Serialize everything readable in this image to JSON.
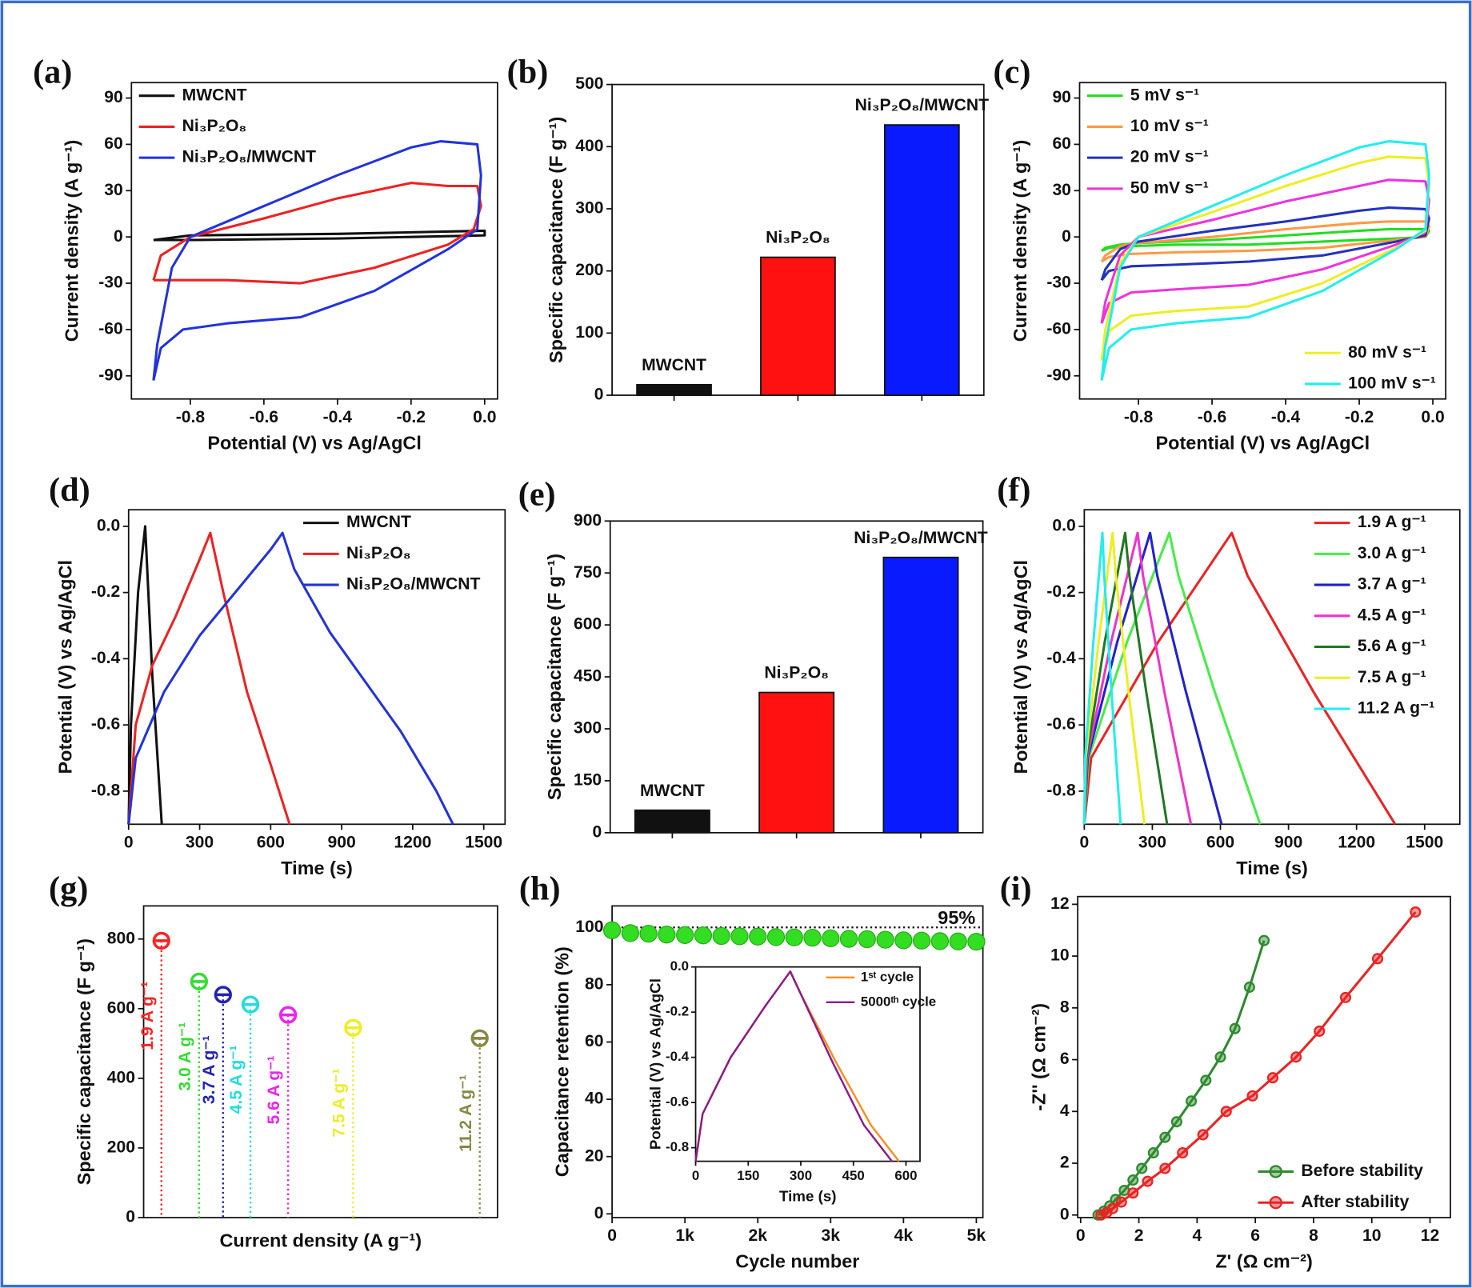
{
  "chart_data": [
    {
      "panel": "(a)",
      "type": "line",
      "xlabel": "Potential (V) vs Ag/AgCl",
      "ylabel": "Current density (A g⁻¹)",
      "xlim": [
        -0.96,
        0.035
      ],
      "ylim": [
        -105,
        100
      ],
      "xticks": [
        -0.8,
        -0.6,
        -0.4,
        -0.2,
        {
          "value": 0,
          "label": "0.0"
        }
      ],
      "yticks": [
        -90,
        -60,
        -30,
        0,
        30,
        60,
        90
      ],
      "legend": "upper left",
      "series": [
        {
          "name": "MWCNT",
          "color": "#111111",
          "x": [
            -0.9,
            -0.8,
            -0.4,
            0,
            0,
            -0.4,
            -0.8,
            -0.9
          ],
          "values": [
            -2,
            1,
            2,
            4,
            1,
            -1,
            -2,
            -2
          ]
        },
        {
          "name": "Ni₃P₂O₈",
          "color": "#ee2222",
          "x": [
            -0.9,
            -0.88,
            -0.8,
            -0.6,
            -0.4,
            -0.2,
            -0.1,
            -0.02,
            -0.01,
            -0.03,
            -0.1,
            -0.3,
            -0.5,
            -0.7,
            -0.85,
            -0.9
          ],
          "values": [
            -28,
            -12,
            0,
            12,
            25,
            35,
            33,
            33,
            20,
            5,
            -5,
            -20,
            -30,
            -28,
            -28,
            -28
          ]
        },
        {
          "name": "Ni₃P₂O₈/MWCNT",
          "color": "#2233dd",
          "x": [
            -0.9,
            -0.89,
            -0.85,
            -0.8,
            -0.6,
            -0.4,
            -0.2,
            -0.12,
            -0.02,
            -0.01,
            -0.02,
            -0.1,
            -0.3,
            -0.5,
            -0.7,
            -0.82,
            -0.88,
            -0.9
          ],
          "values": [
            -93,
            -70,
            -20,
            0,
            20,
            40,
            58,
            62,
            60,
            40,
            5,
            -8,
            -35,
            -52,
            -56,
            -60,
            -72,
            -93
          ]
        }
      ]
    },
    {
      "panel": "(b)",
      "type": "bar",
      "ylabel": "Specific capacitance (F g⁻¹)",
      "ylim": [
        0,
        500
      ],
      "yticks": [
        0,
        100,
        200,
        300,
        400,
        500
      ],
      "categories": [
        "MWCNT",
        "Ni₃P₂O₈",
        "Ni₃P₂O₈/MWCNT"
      ],
      "values": [
        17,
        222,
        435
      ],
      "colors": [
        "#111111",
        "#ff1111",
        "#0a1aff"
      ]
    },
    {
      "panel": "(c)",
      "type": "line",
      "xlabel": "Potential (V) vs Ag/AgCl",
      "ylabel": "Current density (A g⁻¹)",
      "xlim": [
        -0.96,
        0.035
      ],
      "ylim": [
        -105,
        100
      ],
      "xticks": [
        -0.8,
        -0.6,
        -0.4,
        -0.2,
        {
          "value": 0,
          "label": "0.0"
        }
      ],
      "yticks": [
        -90,
        -60,
        -30,
        0,
        30,
        60,
        90
      ],
      "x": [
        -0.9,
        -0.89,
        -0.85,
        -0.8,
        -0.6,
        -0.4,
        -0.2,
        -0.12,
        -0.02,
        -0.01,
        -0.02,
        -0.1,
        -0.3,
        -0.5,
        -0.7,
        -0.82,
        -0.88,
        -0.9
      ],
      "series": [
        {
          "name": "5 mV s⁻¹",
          "color": "#22dd22",
          "legend": "upper left",
          "values": [
            -9,
            -7,
            -5,
            -4,
            -2,
            1,
            4,
            5,
            5,
            4,
            0,
            -1,
            -3,
            -5,
            -5,
            -6,
            -7,
            -9
          ]
        },
        {
          "name": "10 mV s⁻¹",
          "color": "#ff9944",
          "legend": "upper left",
          "values": [
            -16,
            -12,
            -6,
            -4,
            0,
            5,
            9,
            10,
            10,
            7,
            0,
            -2,
            -7,
            -9,
            -10,
            -11,
            -13,
            -16
          ]
        },
        {
          "name": "20 mV s⁻¹",
          "color": "#2233bb",
          "legend": "upper left",
          "values": [
            -28,
            -21,
            -8,
            -3,
            4,
            10,
            17,
            19,
            18,
            12,
            1,
            -3,
            -12,
            -16,
            -18,
            -19,
            -22,
            -28
          ]
        },
        {
          "name": "50 mV s⁻¹",
          "color": "#ee33dd",
          "legend": "upper left",
          "values": [
            -56,
            -42,
            -12,
            0,
            11,
            23,
            33,
            37,
            36,
            24,
            3,
            -5,
            -21,
            -31,
            -34,
            -36,
            -43,
            -56
          ]
        },
        {
          "name": "80 mV s⁻¹",
          "color": "#eeee22",
          "legend": "lower right",
          "values": [
            -80,
            -60,
            -17,
            0,
            16,
            33,
            48,
            52,
            51,
            34,
            4,
            -7,
            -30,
            -45,
            -48,
            -51,
            -61,
            -80
          ]
        },
        {
          "name": "100 mV s⁻¹",
          "color": "#22eeee",
          "legend": "lower right",
          "values": [
            -93,
            -70,
            -20,
            0,
            20,
            40,
            58,
            62,
            60,
            40,
            5,
            -8,
            -35,
            -52,
            -56,
            -60,
            -72,
            -93
          ]
        }
      ]
    },
    {
      "panel": "(d)",
      "type": "line",
      "xlabel": "Time (s)",
      "ylabel": "Potential (V) vs Ag/AgCl",
      "xlim": [
        0,
        1590
      ],
      "ylim": [
        -0.9,
        0.05
      ],
      "xticks": [
        0,
        300,
        600,
        900,
        1200,
        1500
      ],
      "yticks": [
        -0.8,
        -0.6,
        -0.4,
        -0.2,
        {
          "value": 0,
          "label": "0.0"
        }
      ],
      "legend": "upper right",
      "series": [
        {
          "name": "MWCNT",
          "color": "#111111",
          "x": [
            0,
            10,
            40,
            70,
            100,
            140
          ],
          "values": [
            -0.9,
            -0.6,
            -0.2,
            0,
            -0.45,
            -0.9
          ]
        },
        {
          "name": "Ni₃P₂O₈",
          "color": "#ee2222",
          "x": [
            0,
            30,
            100,
            200,
            300,
            345,
            400,
            500,
            600,
            680
          ],
          "values": [
            -0.9,
            -0.6,
            -0.42,
            -0.27,
            -0.1,
            -0.02,
            -0.2,
            -0.5,
            -0.72,
            -0.9
          ]
        },
        {
          "name": "Ni₃P₂O₈/MWCNT",
          "color": "#2233dd",
          "x": [
            0,
            30,
            150,
            300,
            450,
            600,
            650,
            700,
            850,
            1000,
            1150,
            1300,
            1370
          ],
          "values": [
            -0.9,
            -0.7,
            -0.5,
            -0.33,
            -0.2,
            -0.07,
            -0.02,
            -0.13,
            -0.32,
            -0.47,
            -0.62,
            -0.8,
            -0.9
          ]
        }
      ]
    },
    {
      "panel": "(e)",
      "type": "bar",
      "ylabel": "Specific capacitance (F g⁻¹)",
      "ylim": [
        0,
        900
      ],
      "yticks": [
        0,
        150,
        300,
        450,
        600,
        750,
        900
      ],
      "categories": [
        "MWCNT",
        "Ni₃P₂O₈",
        "Ni₃P₂O₈/MWCNT"
      ],
      "values": [
        65,
        405,
        795
      ],
      "colors": [
        "#111111",
        "#ff1111",
        "#0a1aff"
      ]
    },
    {
      "panel": "(f)",
      "type": "line",
      "xlabel": "Time (s)",
      "ylabel": "Potential (V) vs Ag/AgCl",
      "xlim": [
        0,
        1655
      ],
      "ylim": [
        -0.9,
        0.05
      ],
      "xticks": [
        0,
        300,
        600,
        900,
        1200,
        1500
      ],
      "yticks": [
        -0.8,
        -0.6,
        -0.4,
        -0.2,
        {
          "value": 0,
          "label": "0.0"
        }
      ],
      "legend": "upper right",
      "series": [
        {
          "name": "1.9 A g⁻¹",
          "color": "#ee2222",
          "x": [
            0,
            30,
            325,
            650,
            720,
            1010,
            1370
          ],
          "values": [
            -0.9,
            -0.7,
            -0.35,
            -0.02,
            -0.15,
            -0.5,
            -0.9
          ]
        },
        {
          "name": "3.0 A g⁻¹",
          "color": "#44ee44",
          "x": [
            0,
            19,
            188,
            375,
            415,
            575,
            775
          ],
          "values": [
            -0.9,
            -0.7,
            -0.35,
            -0.02,
            -0.15,
            -0.5,
            -0.9
          ]
        },
        {
          "name": "3.7 A g⁻¹",
          "color": "#2222cc",
          "x": [
            0,
            15,
            145,
            290,
            322,
            448,
            605
          ],
          "values": [
            -0.9,
            -0.7,
            -0.35,
            -0.02,
            -0.15,
            -0.5,
            -0.9
          ]
        },
        {
          "name": "4.5 A g⁻¹",
          "color": "#ee33cc",
          "x": [
            0,
            12,
            118,
            235,
            259,
            353,
            470
          ],
          "values": [
            -0.9,
            -0.7,
            -0.35,
            -0.02,
            -0.15,
            -0.5,
            -0.9
          ]
        },
        {
          "name": "5.6 A g⁻¹",
          "color": "#227722",
          "x": [
            0,
            9,
            90,
            180,
            199,
            273,
            365
          ],
          "values": [
            -0.9,
            -0.7,
            -0.35,
            -0.02,
            -0.15,
            -0.5,
            -0.9
          ]
        },
        {
          "name": "7.5 A g⁻¹",
          "color": "#eeee22",
          "x": [
            0,
            6,
            63,
            125,
            139,
            195,
            265
          ],
          "values": [
            -0.9,
            -0.7,
            -0.35,
            -0.02,
            -0.15,
            -0.5,
            -0.9
          ]
        },
        {
          "name": "11.2 A g⁻¹",
          "color": "#22eeee",
          "x": [
            0,
            4,
            40,
            80,
            88,
            120,
            160
          ],
          "values": [
            -0.9,
            -0.7,
            -0.35,
            -0.02,
            -0.15,
            -0.5,
            -0.9
          ]
        }
      ]
    },
    {
      "panel": "(g)",
      "type": "stem",
      "xlabel": "Current density (A g⁻¹)",
      "ylabel": "Specific capacitance (F g⁻¹)",
      "xlim": [
        1.38,
        11.72
      ],
      "ylim": [
        0,
        895
      ],
      "yticks": [
        0,
        200,
        400,
        600,
        800
      ],
      "categories": [
        "1.9 A g⁻¹",
        "3.0 A g⁻¹",
        "3.7 A g⁻¹",
        "4.5 A g⁻¹",
        "5.6 A g⁻¹",
        "7.5 A g⁻¹",
        "11.2 A g⁻¹"
      ],
      "x": [
        1.9,
        3.0,
        3.7,
        4.5,
        5.6,
        7.5,
        11.2
      ],
      "values": [
        795,
        678,
        640,
        612,
        582,
        545,
        515
      ],
      "colors": [
        "#ff2222",
        "#33dd33",
        "#2222bb",
        "#22dddd",
        "#ee22ee",
        "#eeee22",
        "#888844"
      ]
    },
    {
      "panel": "(h)",
      "type": "scatter",
      "xlabel": "Cycle number",
      "ylabel": "Capacitance retention (%)",
      "xlim": [
        0,
        5090
      ],
      "ylim": [
        -1.3,
        107.5
      ],
      "xticks": [
        0,
        {
          "value": 1000,
          "label": "1k"
        },
        {
          "value": 2000,
          "label": "2k"
        },
        {
          "value": 3000,
          "label": "3k"
        },
        {
          "value": 4000,
          "label": "4k"
        },
        {
          "value": 5000,
          "label": "5k"
        }
      ],
      "yticks": [
        0,
        20,
        40,
        60,
        80,
        100
      ],
      "annotation": "95%",
      "reference_line": 100,
      "color": "#33dd22",
      "x": [
        0,
        250,
        500,
        750,
        1000,
        1250,
        1500,
        1750,
        2000,
        2250,
        2500,
        2750,
        3000,
        3250,
        3500,
        3750,
        4000,
        4250,
        4500,
        4750,
        5000
      ],
      "values": [
        99,
        98,
        97.8,
        97.5,
        97.3,
        97.2,
        97,
        96.9,
        96.8,
        96.6,
        96.5,
        96.4,
        96.2,
        96,
        95.9,
        95.7,
        95.5,
        95.4,
        95.2,
        95.1,
        95
      ]
    },
    {
      "type": "line",
      "xlabel": "Time (s)",
      "ylabel": "Potential (V) vs Ag/AgCl",
      "xlim": [
        0,
        640
      ],
      "ylim": [
        -0.86,
        0
      ],
      "xticks": [
        0,
        150,
        300,
        450,
        600
      ],
      "yticks": [
        -0.8,
        -0.6,
        -0.4,
        -0.2,
        {
          "value": 0,
          "label": "0.0"
        }
      ],
      "legend": "upper right",
      "series": [
        {
          "name": "1ˢᵗ cycle",
          "color": "#ff8c1a",
          "x": [
            0,
            20,
            100,
            200,
            270,
            300,
            400,
            500,
            580
          ],
          "values": [
            -0.86,
            -0.65,
            -0.4,
            -0.17,
            -0.02,
            -0.12,
            -0.42,
            -0.7,
            -0.86
          ]
        },
        {
          "name": "5000ᵗʰ cycle",
          "color": "#8b1a8b",
          "x": [
            0,
            20,
            100,
            200,
            270,
            300,
            390,
            480,
            560
          ],
          "values": [
            -0.86,
            -0.65,
            -0.4,
            -0.17,
            -0.02,
            -0.12,
            -0.42,
            -0.7,
            -0.86
          ]
        }
      ]
    },
    {
      "panel": "(i)",
      "type": "line",
      "xlabel": "Z' (Ω cm⁻²)",
      "ylabel": "-Z'' (Ω cm⁻²)",
      "xlim": [
        -0.1,
        12.7
      ],
      "ylim": [
        -0.1,
        12.3
      ],
      "xticks": [
        0,
        2,
        4,
        6,
        8,
        10,
        12
      ],
      "yticks": [
        0,
        2,
        4,
        6,
        8,
        10,
        12
      ],
      "legend": "lower right",
      "marker": "circle",
      "series": [
        {
          "name": "Before stability",
          "color": "#2e8b2e",
          "x": [
            0.6,
            0.8,
            1.0,
            1.2,
            1.5,
            1.8,
            2.1,
            2.5,
            2.9,
            3.3,
            3.8,
            4.3,
            4.8,
            5.3,
            5.8,
            6.3
          ],
          "values": [
            0,
            0.15,
            0.35,
            0.6,
            0.95,
            1.35,
            1.8,
            2.4,
            3.0,
            3.6,
            4.4,
            5.2,
            6.1,
            7.2,
            8.8,
            10.6
          ]
        },
        {
          "name": "After stability",
          "color": "#ee2222",
          "x": [
            0.7,
            0.9,
            1.1,
            1.4,
            1.8,
            2.3,
            2.9,
            3.5,
            4.2,
            5.0,
            5.9,
            6.6,
            7.4,
            8.2,
            9.1,
            10.2,
            11.5
          ],
          "values": [
            0,
            0.1,
            0.25,
            0.5,
            0.85,
            1.3,
            1.8,
            2.4,
            3.1,
            4.0,
            4.6,
            5.3,
            6.1,
            7.1,
            8.4,
            9.9,
            11.7
          ]
        }
      ]
    }
  ]
}
